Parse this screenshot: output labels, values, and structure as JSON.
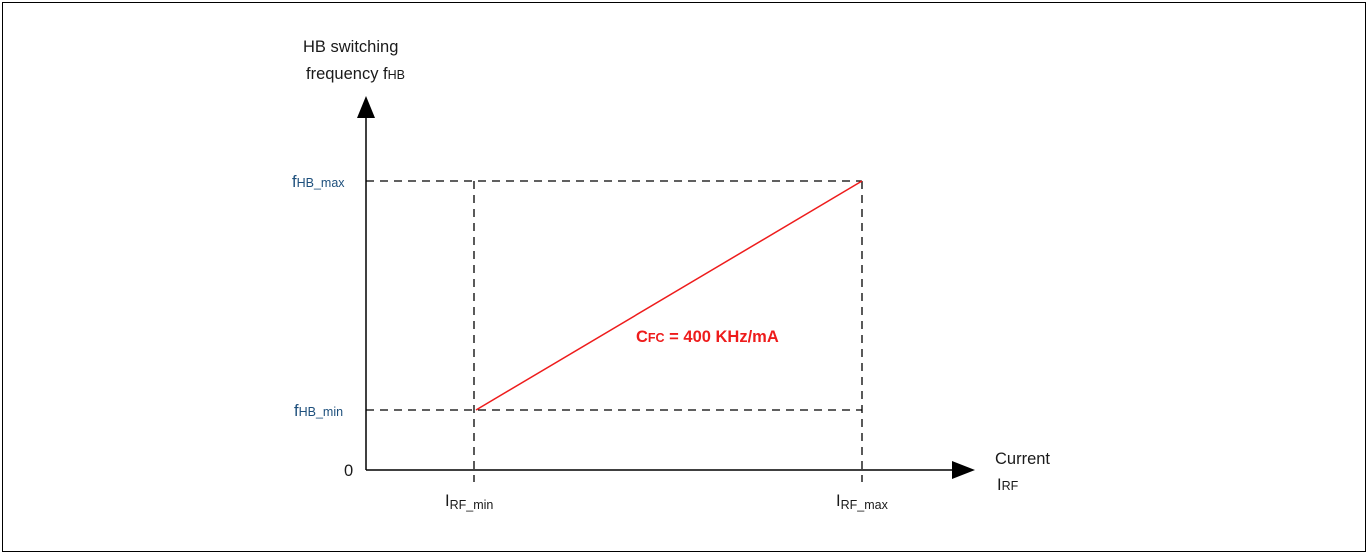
{
  "diagram": {
    "y_axis_title": {
      "line1": "HB switching",
      "line2_main": "frequency f",
      "line2_sub": "HB"
    },
    "x_axis_title": {
      "line1": "Current",
      "line2_main": "I",
      "line2_sub": "RF"
    },
    "origin_label": "0",
    "y_ticks": [
      {
        "main": "f",
        "sub": "HB_max"
      },
      {
        "main": "f",
        "sub": "HB_min"
      }
    ],
    "x_ticks": [
      {
        "main": "I",
        "sub": "RF_min"
      },
      {
        "main": "I",
        "sub": "RF_max"
      }
    ],
    "annotation": {
      "main": "C",
      "sub": "FC",
      "rest": " = 400 KHz/mA"
    },
    "colors": {
      "curve": "#ee1c1c",
      "tick_label": "#1d4f7c",
      "axis": "#000000"
    }
  }
}
